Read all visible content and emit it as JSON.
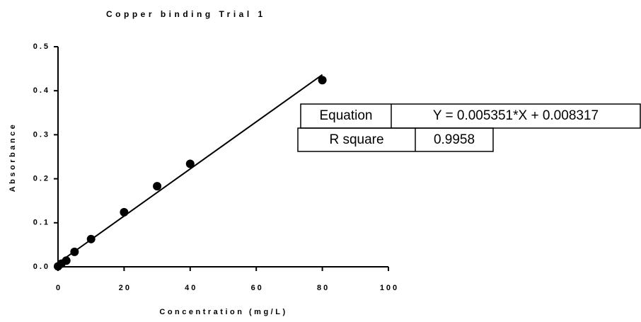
{
  "chart_data": {
    "type": "scatter",
    "title": "Copper binding Trial 1",
    "x_label": "Concentration (mg/L)",
    "y_label": "Absorbance",
    "x": [
      0,
      1,
      2.5,
      5,
      10,
      20,
      30,
      40,
      80
    ],
    "values": [
      0.001,
      0.007,
      0.014,
      0.034,
      0.063,
      0.124,
      0.183,
      0.234,
      0.424
    ],
    "color": "#000000",
    "fit": {
      "slope": 0.005351,
      "intercept": 0.008317
    },
    "xlim": [
      0,
      100
    ],
    "xticks": [
      0,
      20,
      40,
      60,
      80,
      100
    ],
    "ylim": [
      0,
      0.5
    ],
    "yticks": [
      {
        "value": 0,
        "label": "0.0"
      },
      0.1,
      0.2,
      0.3,
      0.4,
      0.5
    ],
    "table": [
      [
        "Equation",
        "Y = 0.005351*X + 0.008317"
      ],
      [
        "R square",
        "0.9958"
      ]
    ]
  }
}
